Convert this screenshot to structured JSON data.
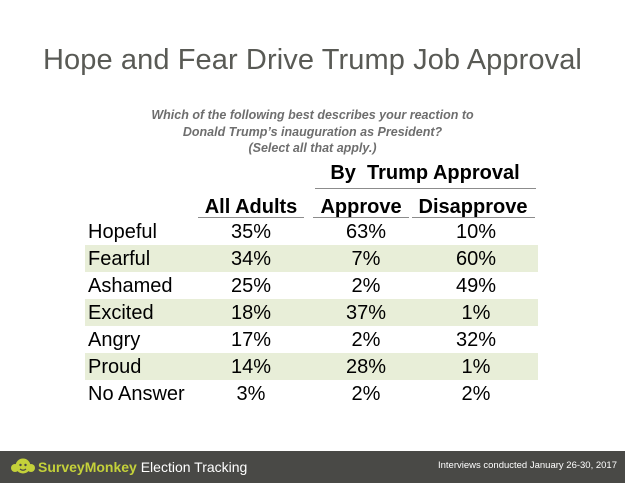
{
  "title": "Hope and Fear Drive Trump Job Approval",
  "question": {
    "line1": "Which of the following best describes your reaction to",
    "line2": "Donald Trump’s inauguration as President?",
    "line3": "(Select all that apply.)"
  },
  "group_header": "By  Trump Approval",
  "columns": [
    "All Adults",
    "Approve",
    "Disapprove"
  ],
  "rows": [
    {
      "label": "Hopeful",
      "values": [
        "35%",
        "63%",
        "10%"
      ]
    },
    {
      "label": "Fearful",
      "values": [
        "34%",
        "7%",
        "60%"
      ]
    },
    {
      "label": "Ashamed",
      "values": [
        "25%",
        "2%",
        "49%"
      ]
    },
    {
      "label": "Excited",
      "values": [
        "18%",
        "37%",
        "1%"
      ]
    },
    {
      "label": "Angry",
      "values": [
        "17%",
        "2%",
        "32%"
      ]
    },
    {
      "label": "Proud",
      "values": [
        "14%",
        "28%",
        "1%"
      ]
    },
    {
      "label": "No Answer",
      "values": [
        "3%",
        "2%",
        "2%"
      ]
    }
  ],
  "chart_data": {
    "type": "table",
    "categories": [
      "Hopeful",
      "Fearful",
      "Ashamed",
      "Excited",
      "Angry",
      "Proud",
      "No Answer"
    ],
    "series": [
      {
        "name": "All Adults",
        "values": [
          35,
          34,
          25,
          18,
          17,
          14,
          3
        ]
      },
      {
        "name": "Approve",
        "values": [
          63,
          7,
          2,
          37,
          2,
          28,
          2
        ]
      },
      {
        "name": "Disapprove",
        "values": [
          10,
          60,
          49,
          1,
          32,
          1,
          2
        ]
      }
    ],
    "title": "Hope and Fear Drive Trump Job Approval"
  },
  "footer": {
    "brand_part1": "SurveyMonkey",
    "brand_part2": " Election Tracking",
    "note": "Interviews conducted January 26-30, 2017"
  },
  "colors": {
    "row_shade": "#e8eed8",
    "footer_bg": "#494946",
    "brand_accent": "#c4d13a",
    "title": "#595a55"
  },
  "icons": {
    "logo": "surveymonkey-logo-icon"
  }
}
